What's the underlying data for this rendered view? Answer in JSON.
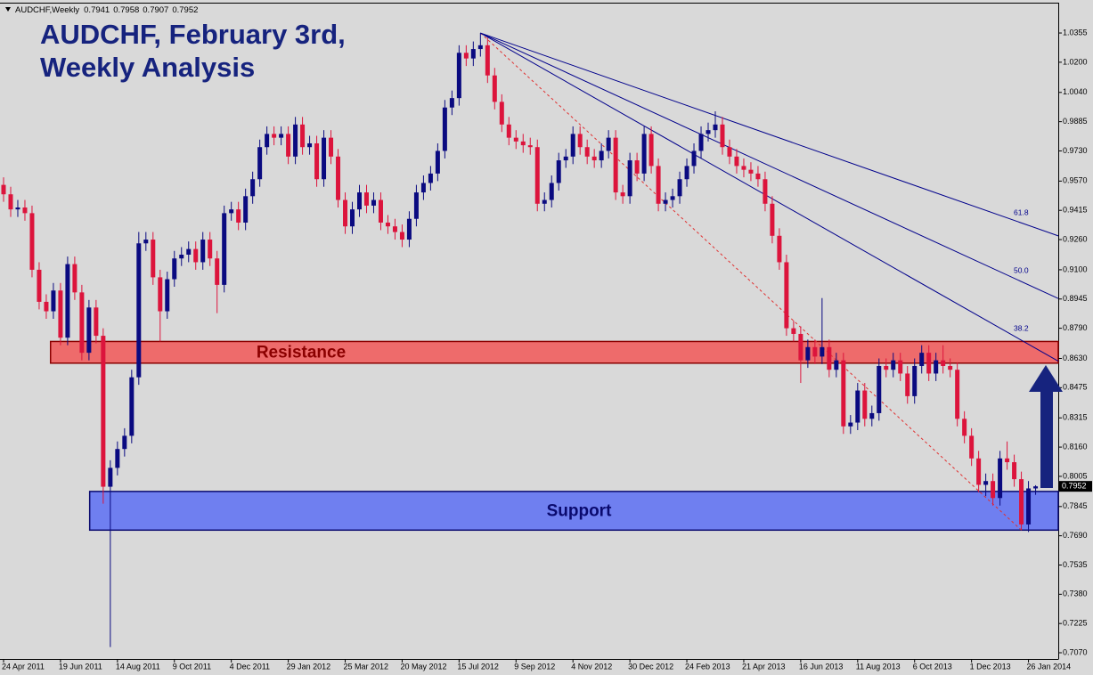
{
  "chart_data": {
    "type": "candlestick",
    "symbol": "AUDCHF,Weekly",
    "title_lines": [
      "AUDCHF, February 3rd,",
      "Weekly Analysis"
    ],
    "categories": [
      "24 Apr 2011",
      null,
      null,
      null,
      null,
      null,
      null,
      null,
      "19 Jun 2011",
      null,
      null,
      null,
      null,
      null,
      null,
      null,
      "14 Aug 2011",
      null,
      null,
      null,
      null,
      null,
      null,
      null,
      "9 Oct 2011",
      null,
      null,
      null,
      null,
      null,
      null,
      null,
      "4 Dec 2011",
      null,
      null,
      null,
      null,
      null,
      null,
      null,
      "29 Jan 2012",
      null,
      null,
      null,
      null,
      null,
      null,
      null,
      "25 Mar 2012",
      null,
      null,
      null,
      null,
      null,
      null,
      null,
      "20 May 2012",
      null,
      null,
      null,
      null,
      null,
      null,
      null,
      "15 Jul 2012",
      null,
      null,
      null,
      null,
      null,
      null,
      null,
      "9 Sep 2012",
      null,
      null,
      null,
      null,
      null,
      null,
      null,
      "4 Nov 2012",
      null,
      null,
      null,
      null,
      null,
      null,
      null,
      "30 Dec 2012",
      null,
      null,
      null,
      null,
      null,
      null,
      null,
      "24 Feb 2013",
      null,
      null,
      null,
      null,
      null,
      null,
      null,
      "21 Apr 2013",
      null,
      null,
      null,
      null,
      null,
      null,
      null,
      "16 Jun 2013",
      null,
      null,
      null,
      null,
      null,
      null,
      null,
      "11 Aug 2013",
      null,
      null,
      null,
      null,
      null,
      null,
      null,
      "6 Oct 2013",
      null,
      null,
      null,
      null,
      null,
      null,
      null,
      "1 Dec 2013",
      null,
      null,
      null,
      null,
      null,
      null,
      null,
      "26 Jan 2014",
      null
    ],
    "series": [
      {
        "up_color": "#0a0a80",
        "down_color": "#dc143c",
        "open": [
          0.955,
          0.95,
          0.942,
          0.943,
          0.94,
          0.91,
          0.893,
          0.888,
          0.899,
          0.874,
          0.913,
          0.898,
          0.866,
          0.89,
          0.875,
          0.795,
          0.805,
          0.815,
          0.822,
          0.853,
          0.924,
          0.926,
          0.906,
          0.888,
          0.905,
          0.916,
          0.918,
          0.921,
          0.914,
          0.926,
          0.916,
          0.902,
          0.94,
          0.942,
          0.935,
          0.949,
          0.958,
          0.975,
          0.982,
          0.98,
          0.982,
          0.97,
          0.987,
          0.975,
          0.977,
          0.958,
          0.98,
          0.97,
          0.947,
          0.933,
          0.942,
          0.951,
          0.944,
          0.947,
          0.935,
          0.933,
          0.93,
          0.926,
          0.937,
          0.951,
          0.956,
          0.961,
          0.973,
          0.996,
          1.001,
          1.025,
          1.022,
          1.027,
          1.029,
          1.013,
          0.999,
          0.987,
          0.98,
          0.978,
          0.976,
          0.975,
          0.945,
          0.947,
          0.956,
          0.968,
          0.97,
          0.982,
          0.975,
          0.97,
          0.968,
          0.973,
          0.98,
          0.951,
          0.949,
          0.968,
          0.961,
          0.982,
          0.965,
          0.945,
          0.947,
          0.949,
          0.958,
          0.965,
          0.973,
          0.982,
          0.984,
          0.987,
          0.975,
          0.97,
          0.965,
          0.963,
          0.961,
          0.958,
          0.945,
          0.928,
          0.914,
          0.879,
          0.876,
          0.862,
          0.869,
          0.864,
          0.869,
          0.857,
          0.862,
          0.827,
          0.829,
          0.846,
          0.831,
          0.834,
          0.859,
          0.857,
          0.862,
          0.855,
          0.843,
          0.859,
          0.866,
          0.855,
          0.862,
          0.859,
          0.857,
          0.831,
          0.822,
          0.81,
          0.796,
          0.798,
          0.789,
          0.81,
          0.808,
          0.799,
          0.775,
          0.7941
        ],
        "high": [
          0.959,
          0.954,
          0.947,
          0.947,
          0.944,
          0.914,
          0.897,
          0.903,
          0.903,
          0.917,
          0.917,
          0.902,
          0.894,
          0.894,
          0.879,
          0.809,
          0.819,
          0.826,
          0.857,
          0.93,
          0.93,
          0.93,
          0.91,
          0.909,
          0.92,
          0.922,
          0.925,
          0.925,
          0.93,
          0.93,
          0.92,
          0.944,
          0.946,
          0.946,
          0.953,
          0.962,
          0.979,
          0.986,
          0.986,
          0.986,
          0.986,
          0.991,
          0.991,
          0.981,
          0.981,
          0.984,
          0.984,
          0.974,
          0.951,
          0.946,
          0.955,
          0.955,
          0.951,
          0.951,
          0.939,
          0.937,
          0.934,
          0.941,
          0.955,
          0.96,
          0.965,
          0.977,
          1.0,
          1.005,
          1.029,
          1.029,
          1.031,
          1.0355,
          1.033,
          1.017,
          1.003,
          0.991,
          0.984,
          0.982,
          0.98,
          0.979,
          0.951,
          0.96,
          0.972,
          0.974,
          0.986,
          0.986,
          0.979,
          0.974,
          0.977,
          0.984,
          0.984,
          0.955,
          0.972,
          0.972,
          0.986,
          0.986,
          0.969,
          0.951,
          0.953,
          0.962,
          0.969,
          0.977,
          0.986,
          0.988,
          0.994,
          0.991,
          0.979,
          0.974,
          0.969,
          0.967,
          0.965,
          0.962,
          0.949,
          0.932,
          0.918,
          0.883,
          0.88,
          0.873,
          0.873,
          0.895,
          0.873,
          0.866,
          0.866,
          0.833,
          0.85,
          0.85,
          0.838,
          0.863,
          0.863,
          0.866,
          0.866,
          0.859,
          0.863,
          0.87,
          0.87,
          0.866,
          0.87,
          0.863,
          0.861,
          0.835,
          0.826,
          0.814,
          0.802,
          0.802,
          0.814,
          0.819,
          0.812,
          0.803,
          0.798,
          0.7958
        ],
        "low": [
          0.946,
          0.938,
          0.938,
          0.936,
          0.906,
          0.889,
          0.884,
          0.884,
          0.87,
          0.87,
          0.894,
          0.862,
          0.862,
          0.871,
          0.786,
          0.71,
          0.801,
          0.811,
          0.818,
          0.849,
          0.92,
          0.902,
          0.872,
          0.884,
          0.901,
          0.912,
          0.914,
          0.91,
          0.91,
          0.912,
          0.887,
          0.898,
          0.936,
          0.931,
          0.931,
          0.945,
          0.954,
          0.971,
          0.976,
          0.976,
          0.966,
          0.966,
          0.971,
          0.971,
          0.954,
          0.954,
          0.966,
          0.943,
          0.929,
          0.929,
          0.938,
          0.94,
          0.94,
          0.931,
          0.929,
          0.926,
          0.922,
          0.922,
          0.933,
          0.947,
          0.952,
          0.957,
          0.969,
          0.992,
          0.997,
          1.018,
          1.018,
          1.023,
          1.009,
          0.995,
          0.983,
          0.976,
          0.974,
          0.972,
          0.971,
          0.941,
          0.941,
          0.943,
          0.952,
          0.964,
          0.966,
          0.971,
          0.966,
          0.964,
          0.964,
          0.969,
          0.947,
          0.945,
          0.945,
          0.957,
          0.957,
          0.961,
          0.941,
          0.941,
          0.943,
          0.945,
          0.954,
          0.961,
          0.969,
          0.978,
          0.98,
          0.971,
          0.966,
          0.961,
          0.959,
          0.957,
          0.954,
          0.941,
          0.924,
          0.91,
          0.875,
          0.872,
          0.85,
          0.858,
          0.86,
          0.86,
          0.853,
          0.853,
          0.823,
          0.823,
          0.825,
          0.827,
          0.827,
          0.83,
          0.853,
          0.853,
          0.851,
          0.839,
          0.839,
          0.855,
          0.851,
          0.851,
          0.855,
          0.853,
          0.827,
          0.818,
          0.806,
          0.792,
          0.79,
          0.785,
          0.785,
          0.804,
          0.795,
          0.772,
          0.771,
          0.7907
        ],
        "close": [
          0.95,
          0.942,
          0.943,
          0.94,
          0.91,
          0.893,
          0.888,
          0.899,
          0.874,
          0.913,
          0.898,
          0.866,
          0.89,
          0.875,
          0.795,
          0.805,
          0.815,
          0.822,
          0.853,
          0.924,
          0.926,
          0.906,
          0.888,
          0.905,
          0.916,
          0.918,
          0.921,
          0.914,
          0.926,
          0.916,
          0.902,
          0.94,
          0.942,
          0.935,
          0.949,
          0.958,
          0.975,
          0.982,
          0.98,
          0.982,
          0.97,
          0.987,
          0.975,
          0.977,
          0.958,
          0.98,
          0.97,
          0.947,
          0.933,
          0.942,
          0.951,
          0.944,
          0.947,
          0.935,
          0.933,
          0.93,
          0.926,
          0.937,
          0.951,
          0.956,
          0.961,
          0.973,
          0.996,
          1.001,
          1.025,
          1.022,
          1.027,
          1.029,
          1.013,
          0.999,
          0.987,
          0.98,
          0.978,
          0.976,
          0.975,
          0.945,
          0.947,
          0.956,
          0.968,
          0.97,
          0.982,
          0.975,
          0.97,
          0.968,
          0.973,
          0.98,
          0.951,
          0.949,
          0.968,
          0.961,
          0.982,
          0.965,
          0.945,
          0.947,
          0.949,
          0.958,
          0.965,
          0.973,
          0.982,
          0.984,
          0.987,
          0.975,
          0.97,
          0.965,
          0.963,
          0.961,
          0.958,
          0.945,
          0.928,
          0.914,
          0.879,
          0.876,
          0.862,
          0.869,
          0.864,
          0.869,
          0.857,
          0.862,
          0.827,
          0.829,
          0.846,
          0.831,
          0.834,
          0.859,
          0.857,
          0.862,
          0.855,
          0.843,
          0.859,
          0.866,
          0.855,
          0.862,
          0.859,
          0.857,
          0.831,
          0.822,
          0.81,
          0.796,
          0.798,
          0.789,
          0.81,
          0.808,
          0.799,
          0.775,
          0.7941,
          0.7952
        ]
      }
    ],
    "ylim": [
      0.7037,
      1.0511
    ],
    "yticks": [
      1.0355,
      {
        "value": 1.02,
        "label": "1.0200"
      },
      {
        "value": 1.004,
        "label": "1.0040"
      },
      0.9885,
      {
        "value": 0.973,
        "label": "0.9730"
      },
      {
        "value": 0.957,
        "label": "0.9570"
      },
      0.9415,
      {
        "value": 0.926,
        "label": "0.9260"
      },
      {
        "value": 0.91,
        "label": "0.9100"
      },
      0.8945,
      {
        "value": 0.879,
        "label": "0.8790"
      },
      {
        "value": 0.863,
        "label": "0.8630"
      },
      0.8475,
      0.8315,
      {
        "value": 0.816,
        "label": "0.8160"
      },
      0.8005,
      0.7845,
      {
        "value": 0.769,
        "label": "0.7690"
      },
      0.7535,
      {
        "value": 0.738,
        "label": "0.7380"
      },
      0.7225,
      {
        "value": 0.707,
        "label": "0.7070"
      }
    ],
    "grid": false,
    "zones": [
      {
        "label": "Resistance",
        "high": 0.872,
        "low": 0.8605,
        "start": 6.6,
        "color": "#ee6b6b",
        "text_color": "#8b0000"
      },
      {
        "label": "Support",
        "high": 0.7925,
        "low": 0.772,
        "start": 12.1,
        "color": "#6f7ff0",
        "text_color": "#0a0a6e"
      }
    ],
    "fib_fan": {
      "from": {
        "x": 67,
        "price": 1.0355
      },
      "to": {
        "x": 143,
        "price": 0.772
      },
      "color": "#00008b",
      "trend_color": "#e03030",
      "levels": [
        38.2,
        {
          "value": 50,
          "label": "50.0"
        },
        61.8
      ]
    }
  }
}
